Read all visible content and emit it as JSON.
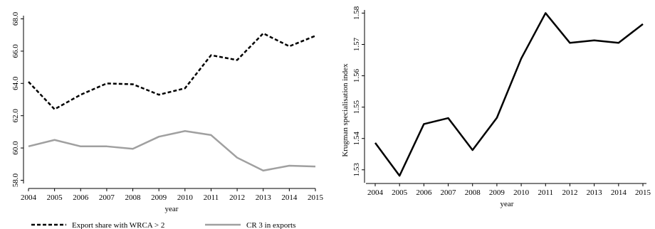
{
  "chart_data": [
    {
      "type": "line",
      "xlabel": "year",
      "ylabel": "",
      "x": [
        2004,
        2005,
        2006,
        2007,
        2008,
        2009,
        2010,
        2011,
        2012,
        2013,
        2014,
        2015
      ],
      "xticks": [
        "2004",
        "2005",
        "2006",
        "2007",
        "2008",
        "2009",
        "2010",
        "2011",
        "2012",
        "2013",
        "2014",
        "2015"
      ],
      "ylim": [
        57.8,
        68.2
      ],
      "yticks": [
        {
          "v": 58.0,
          "label": "58.0"
        },
        {
          "v": 60.0,
          "label": "60.0"
        },
        {
          "v": 62.0,
          "label": "62.0"
        },
        {
          "v": 64.0,
          "label": "64.0"
        },
        {
          "v": 66.0,
          "label": "66.0"
        },
        {
          "v": 68.0,
          "label": "68.0"
        }
      ],
      "grid": false,
      "legend_position": "bottom",
      "series": [
        {
          "name": "Export share with WRCA > 2",
          "color": "#000000",
          "style": "dashed",
          "values": [
            64.1,
            62.4,
            63.3,
            64.0,
            63.95,
            63.3,
            63.7,
            65.75,
            65.45,
            67.1,
            66.3,
            66.95
          ]
        },
        {
          "name": "CR 3 in exports",
          "color": "#a0a0a0",
          "style": "solid",
          "values": [
            60.1,
            60.5,
            60.1,
            60.1,
            59.95,
            60.7,
            61.05,
            60.8,
            59.4,
            58.6,
            58.9,
            58.85
          ]
        }
      ]
    },
    {
      "type": "line",
      "xlabel": "year",
      "ylabel": "Krugman specialisation index",
      "x": [
        2004,
        2005,
        2006,
        2007,
        2008,
        2009,
        2010,
        2011,
        2012,
        2013,
        2014,
        2015
      ],
      "xticks": [
        "2004",
        "2005",
        "2006",
        "2007",
        "2008",
        "2009",
        "2010",
        "2011",
        "2012",
        "2013",
        "2014",
        "2015"
      ],
      "ylim": [
        1.527,
        1.581
      ],
      "yticks": [
        {
          "v": 1.53,
          "label": "1.53"
        },
        {
          "v": 1.54,
          "label": "1.54"
        },
        {
          "v": 1.55,
          "label": "1.55"
        },
        {
          "v": 1.56,
          "label": "1.56"
        },
        {
          "v": 1.57,
          "label": "1.57"
        },
        {
          "v": 1.58,
          "label": "1.58"
        }
      ],
      "grid": false,
      "series": [
        {
          "color": "#000000",
          "style": "solid",
          "values": [
            1.5386,
            1.5281,
            1.5446,
            1.5465,
            1.5363,
            1.5466,
            1.5655,
            1.58,
            1.5705,
            1.5713,
            1.5705,
            1.5765
          ]
        }
      ]
    }
  ]
}
